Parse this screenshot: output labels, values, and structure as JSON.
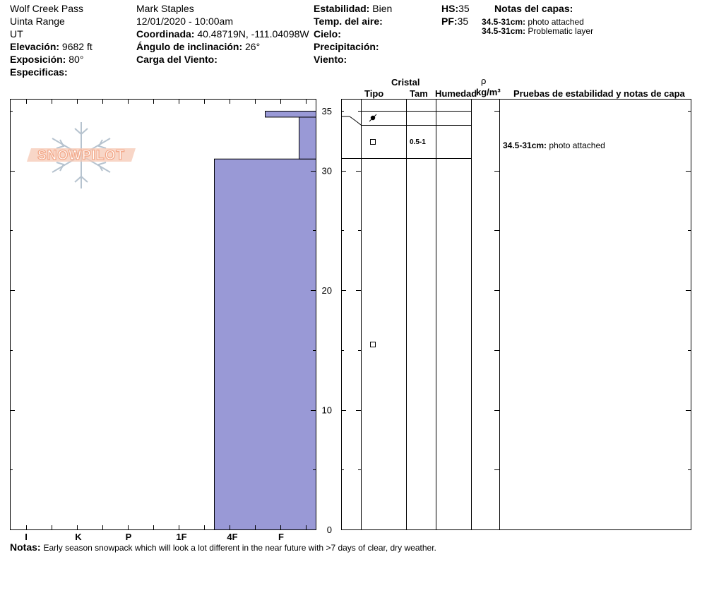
{
  "header": {
    "location": "Wolf Creek Pass",
    "range": "Uinta Range",
    "state": "UT",
    "elevation_label": "Elevación:",
    "elevation_value": "9682 ft",
    "aspect_label": "Exposición:",
    "aspect_value": "80°",
    "specifics_label": "Especificas:",
    "observer": "Mark Staples",
    "datetime": "12/01/2020 - 10:00am",
    "coord_label": "Coordinada:",
    "coord_value": "40.48719N, -111.04098W",
    "slope_label": "Ángulo de inclinación:",
    "slope_value": "26°",
    "wind_load_label": "Carga del Viento:",
    "stability_label": "Estabilidad:",
    "stability_value": "Bien",
    "air_temp_label": "Temp. del aire:",
    "sky_label": "Cielo:",
    "precip_label": "Precipitación:",
    "wind_label": "Viento:",
    "hs_label": "HS:",
    "hs_value": "35",
    "pf_label": "PF:",
    "pf_value": "35",
    "layer_notes_title": "Notas del capas:",
    "layer_notes": [
      {
        "range": "34.5-31cm:",
        "text": "photo attached"
      },
      {
        "range": "34.5-31cm:",
        "text": "Problematic layer"
      }
    ]
  },
  "columns": {
    "crystal": "Cristal",
    "type": "Tipo",
    "size": "Tam",
    "moisture": "Humedad",
    "rho": "ρ",
    "density_unit": "kg/m³",
    "tests_title": "Pruebas de estabilidad y notas de capa"
  },
  "layer_details": [
    {
      "size": "0.5-1",
      "note_range": "34.5-31cm:",
      "note_text": "photo attached"
    }
  ],
  "notes_label": "Notas:",
  "notes_text": "Early season snowpack which will look a lot different in the near future with >7 days of clear, dry weather.",
  "logo_text": "SNOWPILOT",
  "colors": {
    "hardness_fill": "#9999d6",
    "logo": "#f3a98a",
    "flake": "#b6c3cf"
  },
  "chart_data": {
    "type": "bar",
    "title": "",
    "x_categories": [
      "I",
      "K",
      "P",
      "1F",
      "4F",
      "F"
    ],
    "xlabel": "",
    "ylabel": "",
    "ylim": [
      0,
      36
    ],
    "y_ticks": [
      0,
      10,
      20,
      30,
      35
    ],
    "hardness_layers": [
      {
        "bottom_cm": 0,
        "top_cm": 31,
        "hardness": "4F"
      },
      {
        "bottom_cm": 31,
        "top_cm": 34.5,
        "hardness": "F"
      },
      {
        "bottom_cm": 34.5,
        "top_cm": 35,
        "hardness": "F+"
      }
    ],
    "grain_symbols": [
      {
        "depth_cm": 34.5,
        "symbol": "graupel"
      },
      {
        "depth_cm": 32.9,
        "symbol": "faceted"
      },
      {
        "depth_cm": 15.5,
        "symbol": "faceted"
      }
    ]
  }
}
